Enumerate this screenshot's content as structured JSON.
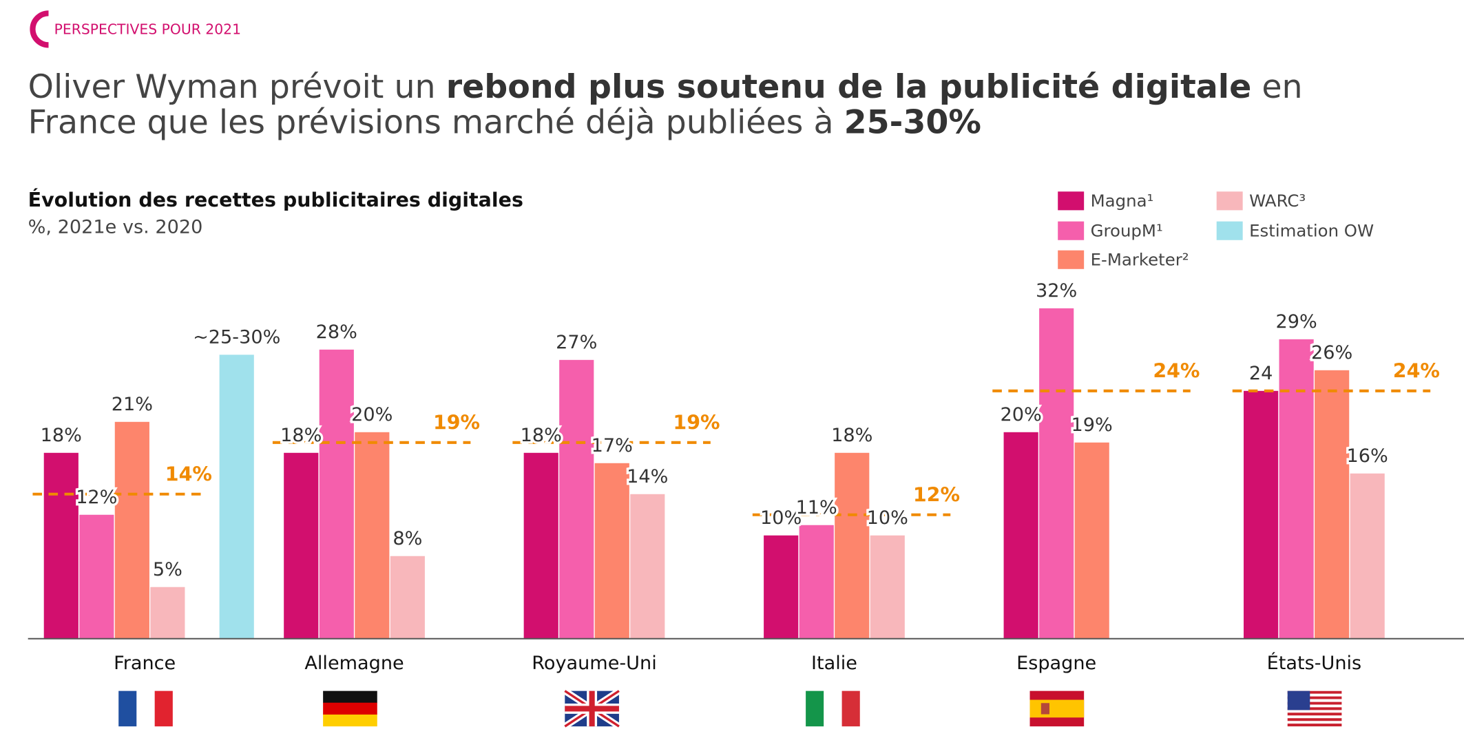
{
  "header": {
    "section": "PERSPECTIVES POUR 2021",
    "headline": [
      [
        {
          "text": "Oliver Wyman prévoit un ",
          "bold": false
        },
        {
          "text": "rebond plus soutenu de la publicité digitale",
          "bold": true
        },
        {
          "text": " en",
          "bold": false
        }
      ],
      [
        {
          "text": "France que les prévisions marché déjà publiées à ",
          "bold": false
        },
        {
          "text": "25-30%",
          "bold": true
        }
      ]
    ]
  },
  "chart_data": {
    "type": "bar",
    "title": "Évolution des recettes publicitaires digitales",
    "subtitle": "%, 2021e vs. 2020",
    "categories": [
      "France",
      "Allemagne",
      "Royaume-Uni",
      "Italie",
      "Espagne",
      "États-Unis"
    ],
    "ylim": [
      0,
      33
    ],
    "series": [
      {
        "name": "Magna¹",
        "color": "#d20f6e",
        "values": [
          18,
          18,
          18,
          10,
          20,
          24
        ],
        "value_labels": [
          "18%",
          "18%",
          "18%",
          "10%",
          "20%",
          "24"
        ]
      },
      {
        "name": "GroupM¹",
        "color": "#f55fac",
        "values": [
          12,
          28,
          27,
          11,
          32,
          29
        ],
        "value_labels": [
          "12%",
          "28%",
          "27%",
          "11%",
          "32%",
          "29%"
        ]
      },
      {
        "name": "E-Marketer²",
        "color": "#fd856c",
        "values": [
          21,
          20,
          17,
          18,
          19,
          26
        ],
        "value_labels": [
          "21%",
          "20%",
          "17%",
          "18%",
          "19%",
          "26%"
        ]
      },
      {
        "name": "WARC³",
        "color": "#f8b7bb",
        "values": [
          5,
          8,
          14,
          10,
          null,
          16
        ],
        "value_labels": [
          "5%",
          "8%",
          "14%",
          "10%",
          null,
          "16%"
        ]
      },
      {
        "name": "Estimation OW",
        "color": "#a0e1ec",
        "values": [
          27.5,
          null,
          null,
          null,
          null,
          null
        ],
        "value_labels": [
          "~25-30%",
          null,
          null,
          null,
          null,
          null
        ]
      }
    ],
    "reference_color": "#f08a00",
    "reference_values": [
      14,
      19,
      19,
      12,
      24,
      24
    ],
    "reference_labels": [
      "14%",
      "19%",
      "19%",
      "12%",
      "24%",
      "24%"
    ]
  }
}
